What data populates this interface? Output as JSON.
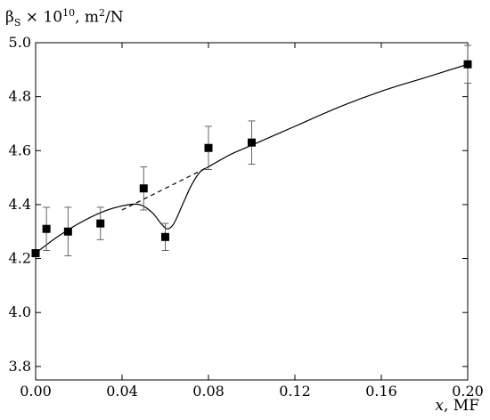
{
  "chart_data": {
    "type": "scatter",
    "title": "",
    "ylabel": {
      "symbol": "β",
      "subscript": "S",
      "times": "×",
      "base": "10",
      "exponent": "10",
      "unit_prefix": ", m",
      "unit_exponent": "2",
      "unit_suffix": "/N"
    },
    "xlabel": {
      "var": "x",
      "unit": ", MF"
    },
    "xlim": [
      0.0,
      0.2
    ],
    "ylim": [
      3.75,
      5.0
    ],
    "xticks": [
      "0.00",
      "0.04",
      "0.08",
      "0.12",
      "0.16",
      "0.20"
    ],
    "xtick_values": [
      0.0,
      0.04,
      0.08,
      0.12,
      0.16,
      0.2
    ],
    "yticks": [
      "3.8",
      "4.0",
      "4.2",
      "4.4",
      "4.6",
      "4.8",
      "5.0"
    ],
    "ytick_values": [
      3.8,
      4.0,
      4.2,
      4.4,
      4.6,
      4.8,
      5.0
    ],
    "grid": false,
    "series": [
      {
        "marker": "square",
        "x": [
          0.0,
          0.005,
          0.015,
          0.03,
          0.05,
          0.06,
          0.08,
          0.1,
          0.2
        ],
        "y": [
          4.22,
          4.31,
          4.3,
          4.33,
          4.46,
          4.28,
          4.61,
          4.63,
          4.92
        ],
        "err": [
          0.0,
          0.08,
          0.09,
          0.06,
          0.08,
          0.05,
          0.08,
          0.08,
          0.07
        ]
      }
    ],
    "curves": [
      {
        "style": "solid",
        "x": [
          0.0,
          0.01,
          0.02,
          0.03,
          0.04,
          0.048,
          0.054,
          0.058,
          0.061,
          0.064,
          0.068,
          0.072,
          0.076,
          0.08,
          0.09,
          0.1,
          0.12,
          0.14,
          0.16,
          0.18,
          0.2
        ],
        "y": [
          4.22,
          4.28,
          4.33,
          4.37,
          4.395,
          4.4,
          4.37,
          4.33,
          4.31,
          4.33,
          4.4,
          4.47,
          4.52,
          4.54,
          4.585,
          4.62,
          4.69,
          4.76,
          4.82,
          4.87,
          4.92
        ]
      },
      {
        "style": "dashed",
        "x": [
          0.04,
          0.08
        ],
        "y": [
          4.38,
          4.54
        ]
      }
    ],
    "colors": {
      "axis": "#000000",
      "marker": "#000000",
      "curve": "#000000",
      "errorbar": "#555555"
    }
  }
}
